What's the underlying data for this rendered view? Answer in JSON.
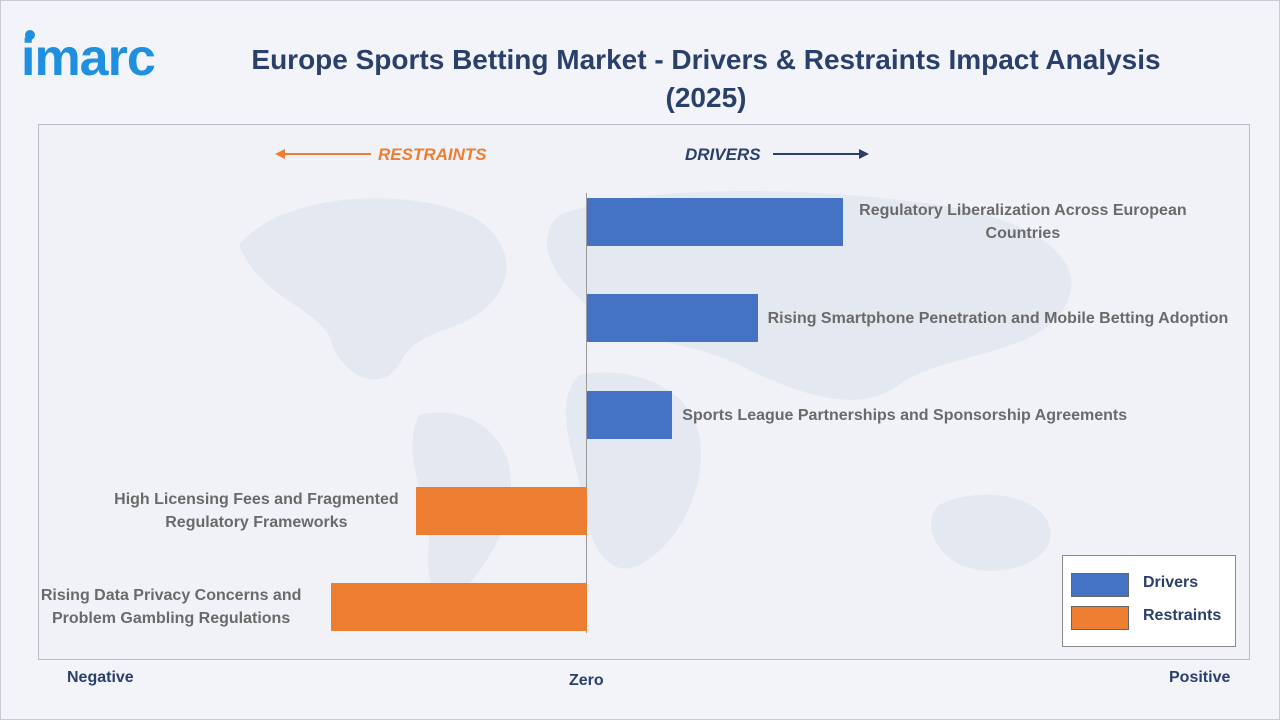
{
  "brand": {
    "logo_text": "imarc"
  },
  "header": {
    "title": "Europe Sports Betting Market - Drivers & Restraints Impact Analysis (2025)"
  },
  "direction": {
    "restraints": "RESTRAINTS",
    "drivers": "DRIVERS"
  },
  "axis": {
    "negative": "Negative",
    "zero": "Zero",
    "positive": "Positive"
  },
  "legend": [
    {
      "label": "Drivers",
      "color": "#4472c4"
    },
    {
      "label": "Restraints",
      "color": "#ed7d31"
    }
  ],
  "colors": {
    "driver": "#4472c4",
    "restraint": "#ed7d31",
    "title": "#2b3f6b",
    "logo": "#1f8fe0"
  },
  "chart_data": {
    "type": "bar",
    "orientation": "horizontal",
    "title": "Europe Sports Betting Market - Drivers & Restraints Impact Analysis (2025)",
    "xlabel": "",
    "ylabel": "",
    "grid": false,
    "legend_position": "bottom-right",
    "categories": [
      "Regulatory Liberalization Across European Countries",
      "Rising Smartphone Penetration and Mobile Betting Adoption",
      "Sports League Partnerships and Sponsorship Agreements",
      "High Licensing Fees and Fragmented Regulatory Frameworks",
      "Rising Data Privacy Concerns and Problem Gambling Regulations"
    ],
    "series": [
      {
        "name": "Drivers",
        "values": [
          3,
          2,
          1,
          null,
          null
        ]
      },
      {
        "name": "Restraints",
        "values": [
          null,
          null,
          null,
          -2,
          -3
        ]
      }
    ],
    "xlim": [
      -3,
      3
    ]
  }
}
